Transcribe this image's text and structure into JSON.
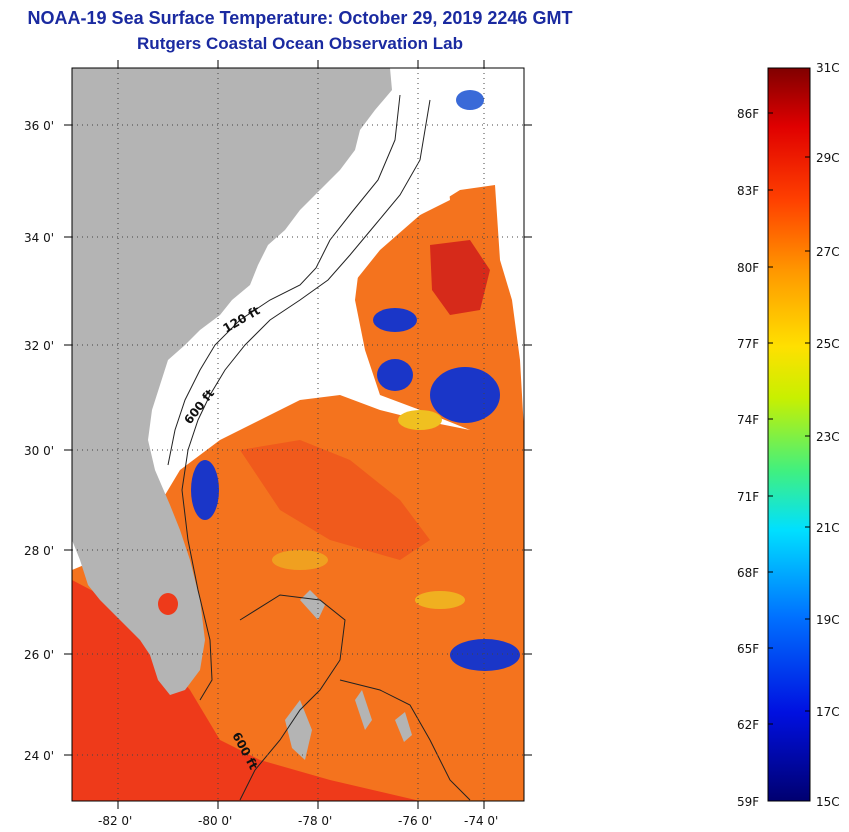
{
  "title": {
    "line1": "NOAA-19 Sea Surface Temperature:  October 29, 2019 2246 GMT",
    "line2": "Rutgers Coastal Ocean Observation Lab"
  },
  "map": {
    "lat_labels": [
      "36 0'",
      "34 0'",
      "32 0'",
      "30 0'",
      "28 0'",
      "26 0'",
      "24 0'"
    ],
    "lon_labels": [
      "-82 0'",
      "-80 0'",
      "-78 0'",
      "-76 0'",
      "-74 0'"
    ],
    "isobath_labels": [
      "120 ft",
      "600 ft",
      "600 ft"
    ],
    "colors": {
      "land": "#b4b4b4",
      "cloud": "#ffffff",
      "warm": "#ee3a1a",
      "orange": "#f4731e",
      "cool": "#1a36c8"
    }
  },
  "colorbar": {
    "celsius": [
      "31C",
      "29C",
      "27C",
      "25C",
      "23C",
      "21C",
      "19C",
      "17C",
      "15C"
    ],
    "fahrenheit": [
      "86F",
      "83F",
      "80F",
      "77F",
      "74F",
      "71F",
      "68F",
      "65F",
      "62F",
      "59F"
    ]
  }
}
